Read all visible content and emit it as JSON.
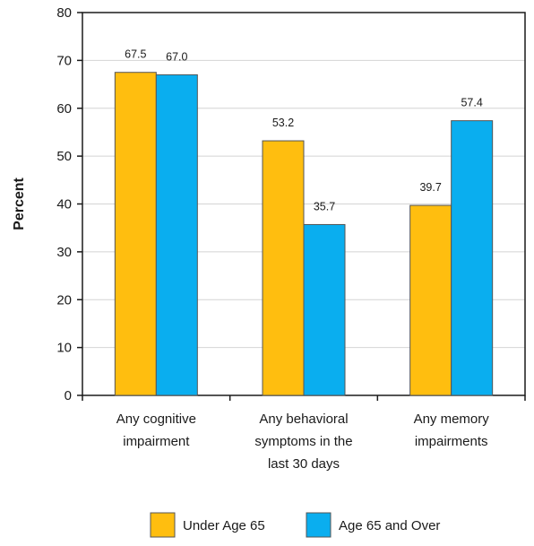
{
  "chart_data": {
    "type": "bar",
    "title": "",
    "xlabel": "",
    "ylabel": "Percent",
    "ylim": [
      0,
      80
    ],
    "yticks": [
      0,
      10,
      20,
      30,
      40,
      50,
      60,
      70,
      80
    ],
    "grid": true,
    "legend_position": "bottom",
    "categories": [
      [
        "Any cognitive",
        "impairment"
      ],
      [
        "Any behavioral",
        "symptoms in the",
        "last 30 days"
      ],
      [
        "Any memory",
        "impairments"
      ]
    ],
    "series": [
      {
        "name": "Under Age 65",
        "color": "#FFBE0F",
        "values": [
          67.5,
          53.2,
          39.7
        ],
        "labels": [
          "67.5",
          "53.2",
          "39.7"
        ]
      },
      {
        "name": "Age 65 and Over",
        "color": "#0AAEEF",
        "values": [
          67.0,
          35.7,
          57.4
        ],
        "labels": [
          "67.0",
          "35.7",
          "57.4"
        ]
      }
    ]
  }
}
